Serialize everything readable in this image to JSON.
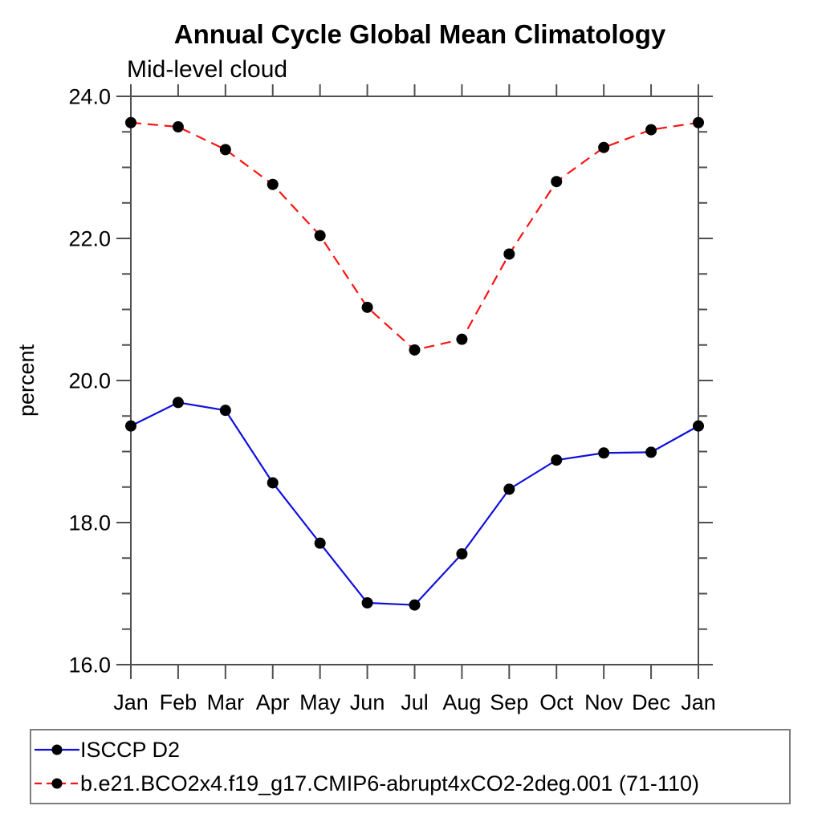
{
  "chart_data": {
    "type": "line",
    "title": "Annual Cycle Global Mean Climatology",
    "subtitle": "Mid-level cloud",
    "ylabel": "percent",
    "categories": [
      "Jan",
      "Feb",
      "Mar",
      "Apr",
      "May",
      "Jun",
      "Jul",
      "Aug",
      "Sep",
      "Oct",
      "Nov",
      "Dec",
      "Jan"
    ],
    "ylim": [
      16.0,
      24.0
    ],
    "y_major_ticks": [
      16.0,
      18.0,
      20.0,
      22.0,
      24.0
    ],
    "y_tick_labels": [
      "16.0",
      "18.0",
      "20.0",
      "22.0",
      "24.0"
    ],
    "y_minor_step": 0.5,
    "grid": false,
    "legend_position": "bottom-left-boxed",
    "axis_color": "#4f4f4f",
    "marker_color": "#000000",
    "series": [
      {
        "name": "ISCCP D2",
        "color": "#1010dd",
        "line_style": "solid",
        "marker": "filled-circle",
        "values": [
          19.36,
          19.69,
          19.58,
          18.56,
          17.71,
          16.87,
          16.84,
          17.56,
          18.47,
          18.88,
          18.98,
          18.99,
          19.36
        ]
      },
      {
        "name": "b.e21.BCO2x4.f19_g17.CMIP6-abrupt4xCO2-2deg.001 (71-110)",
        "color": "#fb1414",
        "line_style": "dashed",
        "marker": "filled-circle",
        "values": [
          23.63,
          23.57,
          23.25,
          22.76,
          22.04,
          21.03,
          20.43,
          20.58,
          21.78,
          22.8,
          23.28,
          23.53,
          23.63
        ]
      }
    ]
  }
}
